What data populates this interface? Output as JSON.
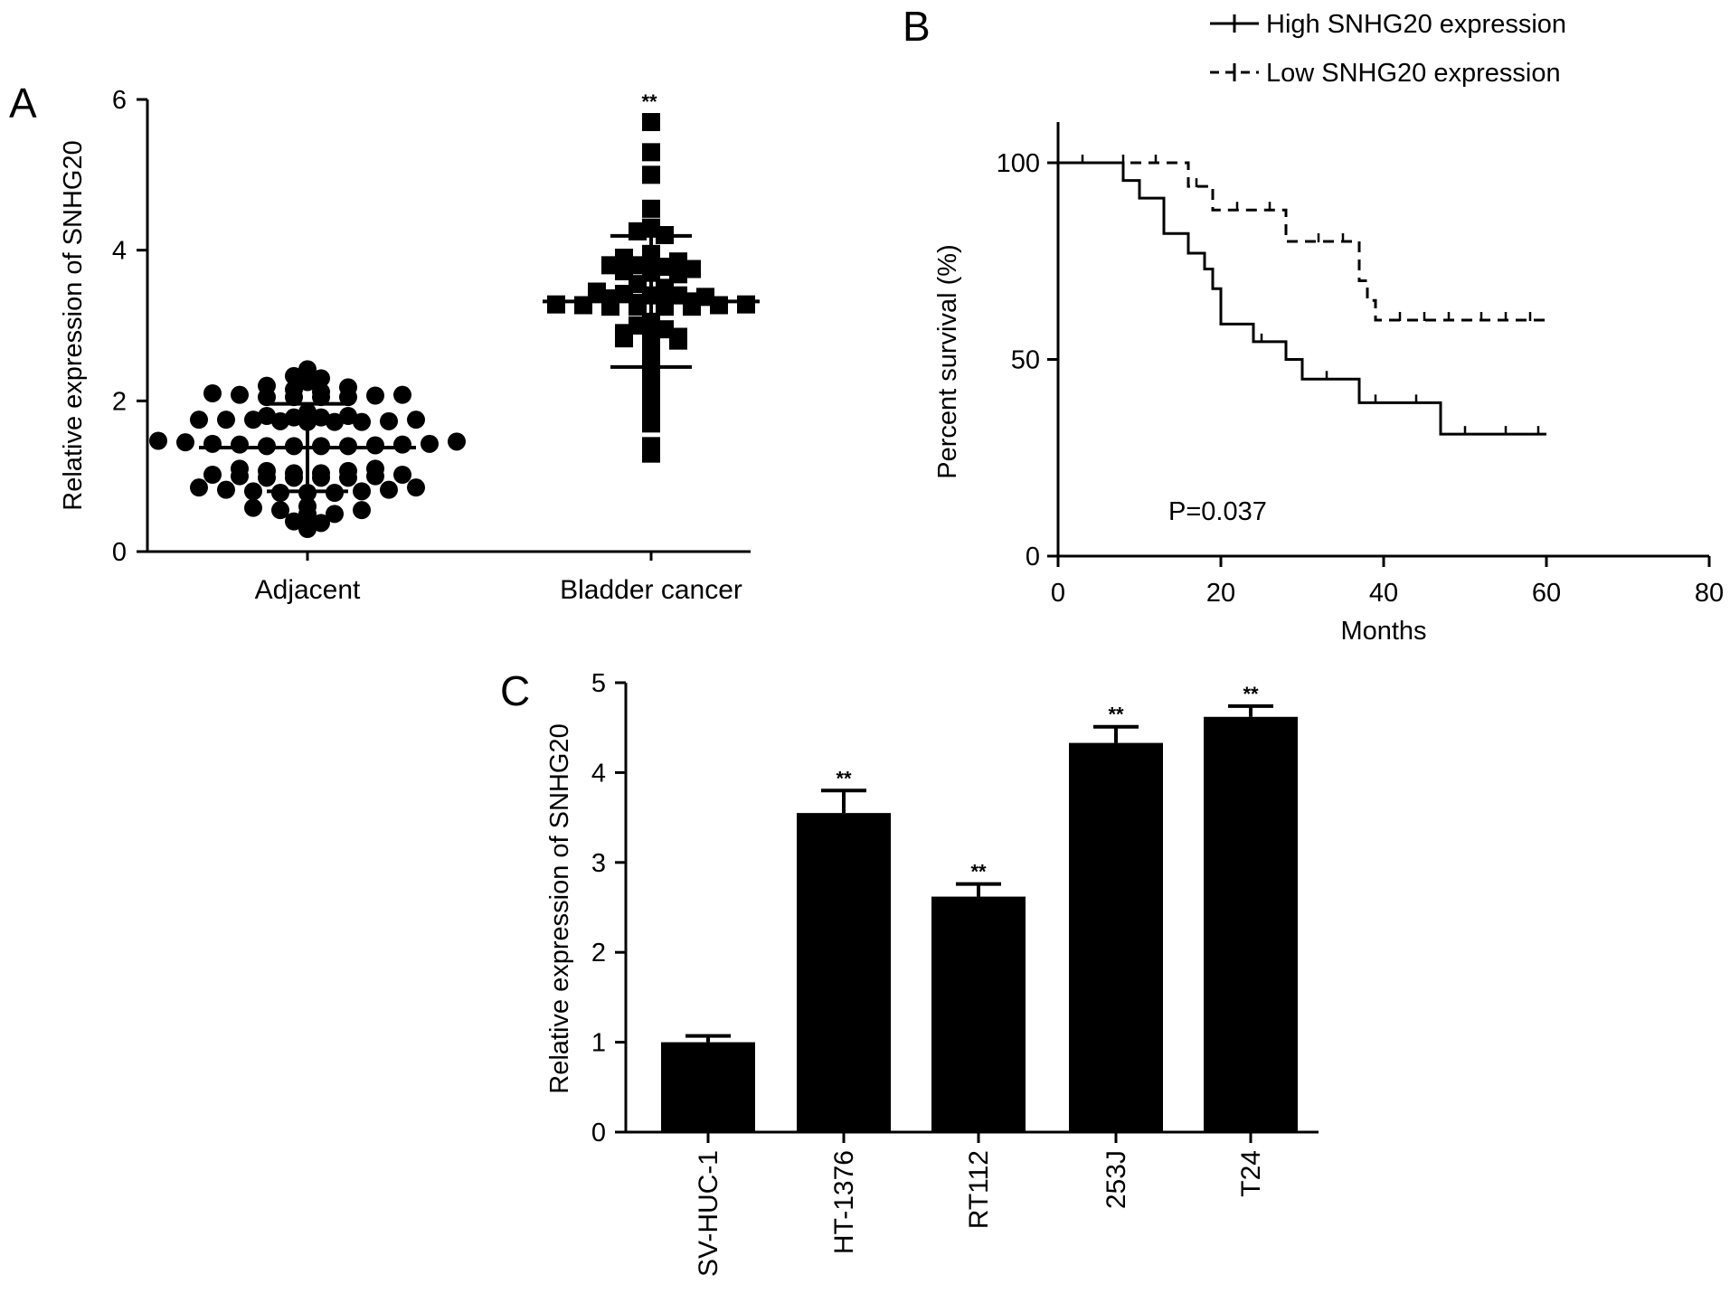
{
  "chart_data": [
    {
      "panel": "A",
      "type": "scatter",
      "ylabel": "Relative expression of SNHG20",
      "ylim": [
        0,
        6
      ],
      "yticks": [
        "0",
        "2",
        "4",
        "6"
      ],
      "categories": [
        "Adjacent",
        "Bladder cancer"
      ],
      "annotations": [
        "**"
      ],
      "series": [
        {
          "category": "Adjacent",
          "marker": "circle",
          "values": [
            2.42,
            2.33,
            2.3,
            2.25,
            2.2,
            2.15,
            2.1,
            2.08,
            2.05,
            2.05,
            2.05,
            2.05,
            2.07,
            2.08,
            2.12,
            2.18,
            1.85,
            1.8,
            1.78,
            1.75,
            1.75,
            1.75,
            1.73,
            1.72,
            1.72,
            1.72,
            1.73,
            1.75,
            1.78,
            1.8,
            1.47,
            1.45,
            1.43,
            1.42,
            1.4,
            1.4,
            1.4,
            1.4,
            1.41,
            1.42,
            1.43,
            1.46,
            1.1,
            1.07,
            1.04,
            1.02,
            1.0,
            0.98,
            0.98,
            0.98,
            0.98,
            1.0,
            1.02,
            1.04,
            1.07,
            1.1,
            0.85,
            0.82,
            0.8,
            0.78,
            0.78,
            0.78,
            0.8,
            0.82,
            0.85,
            0.58,
            0.55,
            0.5,
            0.4,
            0.3,
            0.38,
            0.5,
            0.55,
            0.6
          ],
          "mean": 1.38,
          "sd": 0.58
        },
        {
          "category": "Bladder cancer",
          "marker": "square",
          "values": [
            5.7,
            5.3,
            5.0,
            4.55,
            4.3,
            4.25,
            4.2,
            3.95,
            3.9,
            3.85,
            3.85,
            3.8,
            3.8,
            3.78,
            3.75,
            3.72,
            3.7,
            3.68,
            3.55,
            3.5,
            3.45,
            3.42,
            3.4,
            3.4,
            3.38,
            3.36,
            3.3,
            3.28,
            3.27,
            3.25,
            3.25,
            3.25,
            3.25,
            3.27,
            3.28,
            3.3,
            3.32,
            3.05,
            3.0,
            2.95,
            2.9,
            2.85,
            2.85,
            2.83,
            2.82,
            2.8,
            2.6,
            2.55,
            2.4,
            2.3,
            2.1,
            2.0,
            1.85,
            1.7,
            1.4,
            1.3
          ],
          "mean": 3.32,
          "sd": 0.87
        }
      ]
    },
    {
      "panel": "B",
      "type": "line",
      "xlabel": "Months",
      "ylabel": "Percent survival (%)",
      "xlim": [
        0,
        80
      ],
      "ylim": [
        0,
        100
      ],
      "xticks": [
        "0",
        "20",
        "40",
        "60",
        "80"
      ],
      "yticks": [
        "0",
        "50",
        "100"
      ],
      "annotation": "P=0.037",
      "series": [
        {
          "name": "High SNHG20 expression",
          "style": "solid",
          "x": [
            0,
            8,
            10,
            13,
            16,
            18,
            19,
            20,
            24,
            28,
            30,
            37,
            47,
            60
          ],
          "y": [
            100,
            95.5,
            91,
            82,
            77,
            73,
            68,
            59,
            54.5,
            50,
            45,
            39,
            31,
            31
          ],
          "censor_x": [
            3,
            25,
            33,
            39,
            44,
            50,
            55,
            59
          ]
        },
        {
          "name": "Low SNHG20 expression",
          "style": "dashed",
          "x": [
            0,
            16,
            18,
            19,
            28,
            37,
            38,
            39,
            60
          ],
          "y": [
            100,
            94,
            94,
            88,
            80,
            70,
            65,
            60,
            60
          ],
          "censor_x": [
            8,
            12,
            17,
            22,
            26,
            32,
            35,
            42,
            45,
            48,
            52,
            55,
            58
          ]
        }
      ]
    },
    {
      "panel": "C",
      "type": "bar",
      "ylabel": "Relative expression of SNHG20",
      "ylim": [
        0,
        5
      ],
      "yticks": [
        "0",
        "1",
        "2",
        "3",
        "4",
        "5"
      ],
      "categories": [
        "SV-HUC-1",
        "HT-1376",
        "RT112",
        "253J",
        "T24"
      ],
      "values": [
        1.0,
        3.55,
        2.62,
        4.33,
        4.62
      ],
      "errors": [
        0.07,
        0.25,
        0.14,
        0.18,
        0.12
      ],
      "significance": [
        "",
        "**",
        "**",
        "**",
        "**"
      ]
    }
  ]
}
